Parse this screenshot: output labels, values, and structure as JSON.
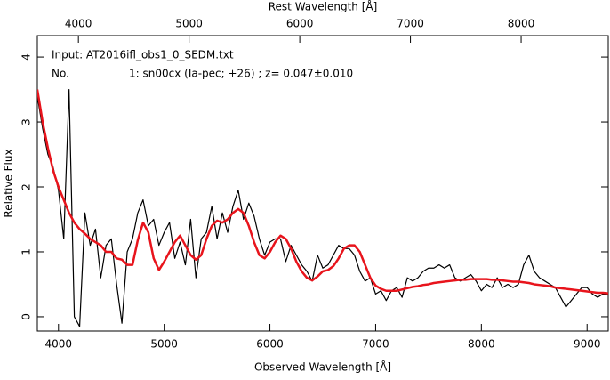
{
  "chart_data": {
    "type": "line",
    "title": "Rest Wavelength [Å]",
    "xlabel": "Observed Wavelength [Å]",
    "ylabel": "Relative Flux",
    "annotations": [
      "Input: AT2016ifl_obs1_0_SEDM.txt",
      "No.",
      "1: sn00cx (Ia-pec; +26) ; z= 0.047±0.010"
    ],
    "annotation_colors": [
      "#000000",
      "#e8141c",
      "#e8141c"
    ],
    "xlim": [
      3800,
      9200
    ],
    "xticks": [
      4000,
      5000,
      6000,
      7000,
      8000,
      9000
    ],
    "x2lim": [
      3629,
      8787
    ],
    "x2ticks": [
      4000,
      5000,
      6000,
      7000,
      8000
    ],
    "ylim": [
      -0.22,
      4.33
    ],
    "yticks": [
      0,
      1,
      2,
      3,
      4
    ],
    "grid": false,
    "x": [
      3800,
      3850,
      3900,
      3950,
      4000,
      4050,
      4100,
      4150,
      4200,
      4250,
      4300,
      4350,
      4400,
      4450,
      4500,
      4550,
      4600,
      4650,
      4700,
      4750,
      4800,
      4850,
      4900,
      4950,
      5000,
      5050,
      5100,
      5150,
      5200,
      5250,
      5300,
      5350,
      5400,
      5450,
      5500,
      5550,
      5600,
      5650,
      5700,
      5750,
      5800,
      5850,
      5900,
      5950,
      6000,
      6050,
      6100,
      6150,
      6200,
      6250,
      6300,
      6350,
      6400,
      6450,
      6500,
      6550,
      6600,
      6650,
      6700,
      6750,
      6800,
      6850,
      6900,
      6950,
      7000,
      7050,
      7100,
      7150,
      7200,
      7250,
      7300,
      7350,
      7400,
      7450,
      7500,
      7550,
      7600,
      7650,
      7700,
      7750,
      7800,
      7850,
      7900,
      7950,
      8000,
      8050,
      8100,
      8150,
      8200,
      8250,
      8300,
      8350,
      8400,
      8450,
      8500,
      8550,
      8600,
      8650,
      8700,
      8750,
      8800,
      8850,
      8900,
      8950,
      9000,
      9050,
      9100,
      9150,
      9200
    ],
    "series": [
      {
        "color": "#000000",
        "width": 1.2,
        "values": [
          3.4,
          2.9,
          2.5,
          2.3,
          1.95,
          1.2,
          3.5,
          0.0,
          -0.15,
          1.6,
          1.1,
          1.35,
          0.6,
          1.1,
          1.2,
          0.5,
          -0.1,
          1.0,
          1.2,
          1.6,
          1.8,
          1.4,
          1.5,
          1.1,
          1.3,
          1.45,
          0.9,
          1.15,
          0.8,
          1.5,
          0.6,
          1.2,
          1.3,
          1.7,
          1.2,
          1.6,
          1.3,
          1.7,
          1.95,
          1.5,
          1.75,
          1.55,
          1.2,
          0.95,
          1.15,
          1.2,
          1.2,
          0.85,
          1.1,
          0.95,
          0.8,
          0.7,
          0.55,
          0.95,
          0.75,
          0.8,
          0.95,
          1.1,
          1.05,
          1.05,
          0.95,
          0.7,
          0.55,
          0.6,
          0.35,
          0.4,
          0.25,
          0.4,
          0.45,
          0.3,
          0.6,
          0.55,
          0.6,
          0.7,
          0.75,
          0.75,
          0.8,
          0.75,
          0.8,
          0.6,
          0.55,
          0.6,
          0.65,
          0.55,
          0.4,
          0.5,
          0.45,
          0.6,
          0.45,
          0.5,
          0.45,
          0.5,
          0.8,
          0.95,
          0.7,
          0.6,
          0.55,
          0.5,
          0.45,
          0.3,
          0.15,
          0.25,
          0.35,
          0.45,
          0.45,
          0.35,
          0.3,
          0.35,
          0.35
        ]
      },
      {
        "color": "#e8141c",
        "width": 2.5,
        "values": [
          3.5,
          3.0,
          2.6,
          2.25,
          2.0,
          1.8,
          1.6,
          1.45,
          1.35,
          1.28,
          1.2,
          1.15,
          1.1,
          1.0,
          1.0,
          0.9,
          0.88,
          0.8,
          0.8,
          1.18,
          1.45,
          1.3,
          0.9,
          0.72,
          0.85,
          1.0,
          1.15,
          1.25,
          1.1,
          0.95,
          0.88,
          0.95,
          1.2,
          1.4,
          1.48,
          1.45,
          1.5,
          1.6,
          1.66,
          1.6,
          1.4,
          1.15,
          0.95,
          0.9,
          1.0,
          1.15,
          1.25,
          1.2,
          1.05,
          0.85,
          0.7,
          0.6,
          0.56,
          0.62,
          0.7,
          0.72,
          0.78,
          0.9,
          1.05,
          1.1,
          1.1,
          1.0,
          0.8,
          0.6,
          0.48,
          0.43,
          0.4,
          0.4,
          0.4,
          0.42,
          0.44,
          0.46,
          0.47,
          0.49,
          0.5,
          0.52,
          0.53,
          0.54,
          0.55,
          0.56,
          0.57,
          0.57,
          0.58,
          0.58,
          0.58,
          0.58,
          0.57,
          0.57,
          0.56,
          0.55,
          0.54,
          0.54,
          0.53,
          0.52,
          0.5,
          0.49,
          0.48,
          0.47,
          0.45,
          0.44,
          0.43,
          0.42,
          0.41,
          0.4,
          0.39,
          0.38,
          0.37,
          0.37,
          0.36
        ]
      }
    ]
  }
}
